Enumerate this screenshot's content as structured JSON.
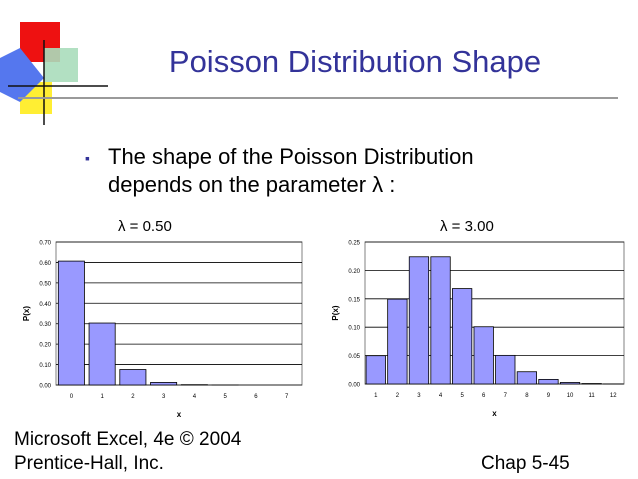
{
  "slide": {
    "title": "Poisson Distribution Shape",
    "bullet_line1": "The shape of the Poisson Distribution",
    "bullet_line2": "depends on the parameter λ :",
    "footer_line1": "Microsoft Excel, 4e © 2004",
    "footer_line2": "Prentice-Hall, Inc.",
    "page_label": "Chap 5-45",
    "title_color": "#333399",
    "bar_fill": "#9999ff"
  },
  "chart_data": [
    {
      "type": "bar",
      "label": "λ = 0.50",
      "xlabel": "x",
      "ylabel": "P(x)",
      "categories": [
        "0",
        "1",
        "2",
        "3",
        "4",
        "5",
        "6",
        "7"
      ],
      "values": [
        0.6065,
        0.3033,
        0.0758,
        0.0126,
        0.0016,
        0.0002,
        0.0,
        0.0
      ],
      "ylim": [
        0,
        0.7
      ],
      "yticks": [
        "0.00",
        "0.10",
        "0.20",
        "0.30",
        "0.40",
        "0.50",
        "0.60",
        "0.70"
      ],
      "grid": true
    },
    {
      "type": "bar",
      "label": "λ = 3.00",
      "xlabel": "x",
      "ylabel": "P(x)",
      "categories": [
        "1",
        "2",
        "3",
        "4",
        "5",
        "6",
        "7",
        "8",
        "9",
        "10",
        "11",
        "12"
      ],
      "values": [
        0.0498,
        0.1494,
        0.224,
        0.224,
        0.168,
        0.1008,
        0.0504,
        0.0216,
        0.0081,
        0.0027,
        0.0008,
        0.0002
      ],
      "ylim": [
        0,
        0.25
      ],
      "yticks": [
        "0.00",
        "0.05",
        "0.10",
        "0.15",
        "0.20",
        "0.25"
      ],
      "grid": true
    }
  ]
}
